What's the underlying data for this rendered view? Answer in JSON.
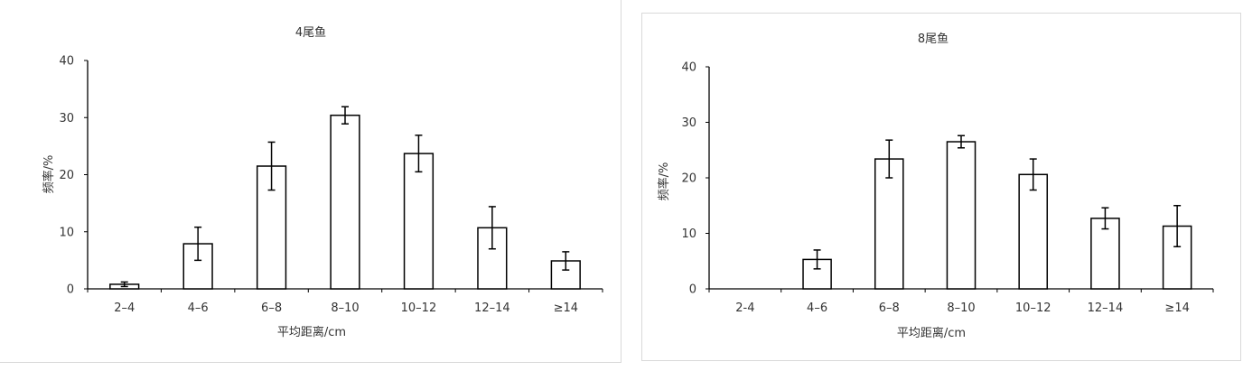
{
  "chart_data": [
    {
      "type": "bar",
      "title": "4尾鱼",
      "xlabel": "平均距离/cm",
      "ylabel": "频率/%",
      "ylim": [
        0,
        40
      ],
      "yticks": [
        "0",
        "10",
        "20",
        "30",
        "40"
      ],
      "categories": [
        "2–4",
        "4–6",
        "6–8",
        "8–10",
        "10–12",
        "12–14",
        "≥14"
      ],
      "values": [
        0.8,
        7.9,
        21.5,
        30.4,
        23.7,
        10.7,
        4.9
      ],
      "error": [
        0.4,
        2.9,
        4.2,
        1.5,
        3.2,
        3.7,
        1.6
      ],
      "grid": false,
      "legend": "none",
      "bar_fill": "#ffffff",
      "bar_stroke": "#000000"
    },
    {
      "type": "bar",
      "title": "8尾鱼",
      "xlabel": "平均距离/cm",
      "ylabel": "频率/%",
      "ylim": [
        0,
        40
      ],
      "yticks": [
        "0",
        "10",
        "20",
        "30",
        "40"
      ],
      "categories": [
        "2-4",
        "4–6",
        "6–8",
        "8–10",
        "10–12",
        "12–14",
        "≥14"
      ],
      "values": [
        0,
        5.3,
        23.4,
        26.5,
        20.6,
        12.7,
        11.3
      ],
      "error": [
        0,
        1.7,
        3.4,
        1.1,
        2.8,
        1.9,
        3.7
      ],
      "grid": false,
      "legend": "none",
      "bar_fill": "#ffffff",
      "bar_stroke": "#000000"
    }
  ]
}
